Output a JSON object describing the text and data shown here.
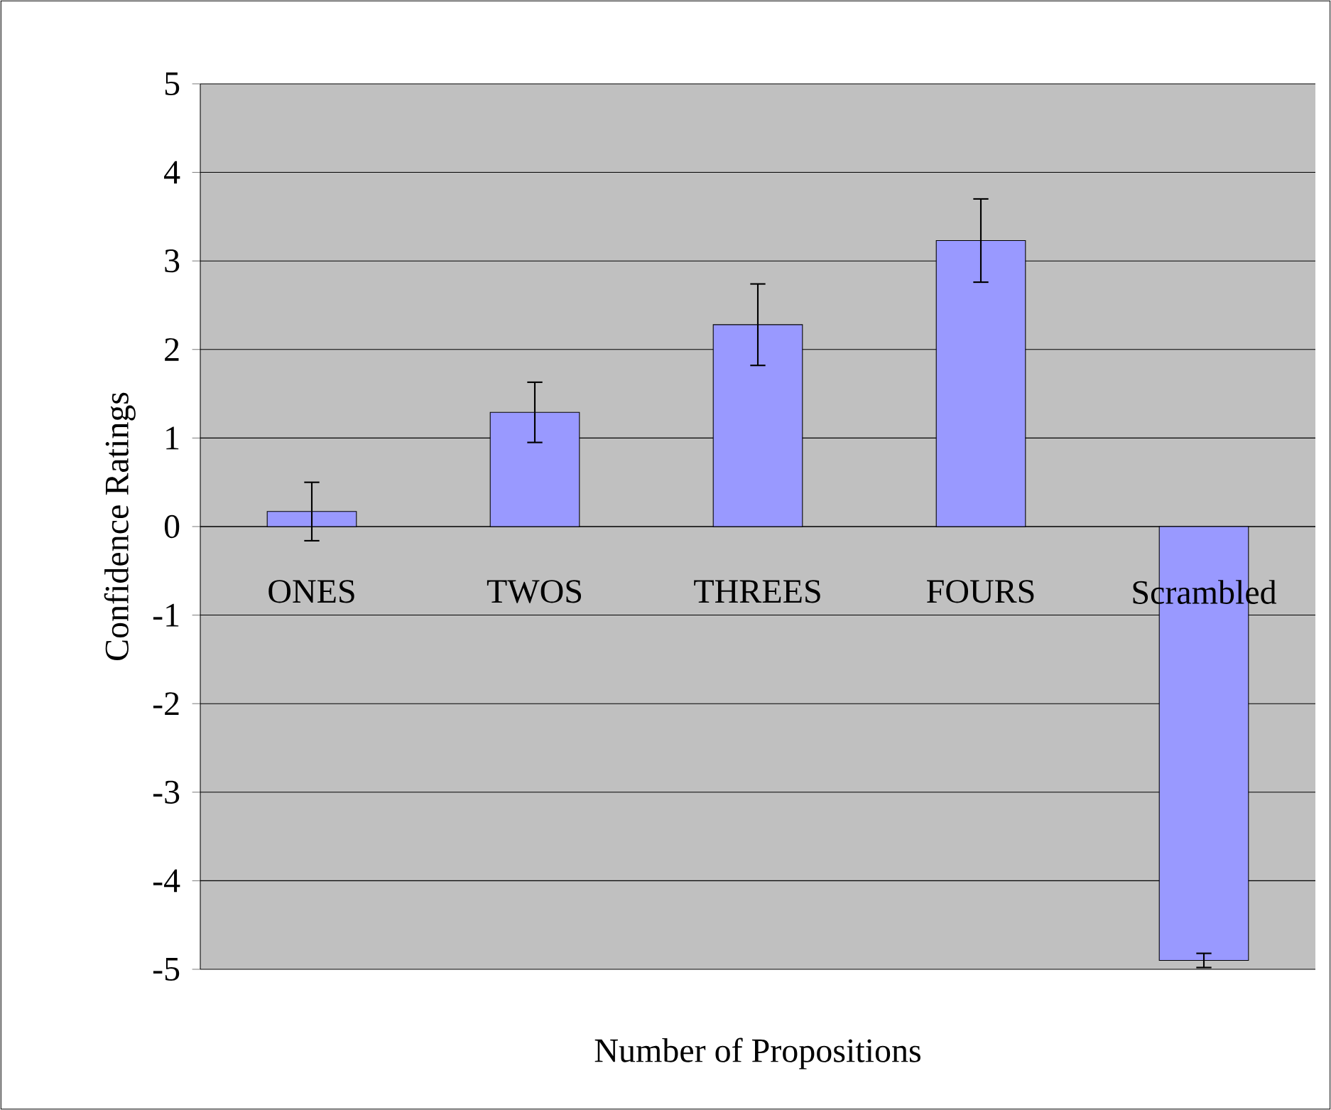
{
  "chart_data": {
    "type": "bar",
    "xlabel": "Number of Propositions",
    "ylabel": "Confidence Ratings",
    "categories": [
      "ONES",
      "TWOS",
      "THREES",
      "FOURS",
      "Scrambled"
    ],
    "values": [
      0.17,
      1.29,
      2.28,
      3.23,
      -4.9
    ],
    "errors": [
      0.33,
      0.34,
      0.46,
      0.47,
      0.08
    ],
    "color": "#9999ff",
    "ylim": [
      -5,
      5
    ],
    "yticks": [
      -5,
      -4,
      -3,
      -2,
      -1,
      0,
      1,
      2,
      3,
      4,
      5
    ],
    "grid": "y"
  }
}
